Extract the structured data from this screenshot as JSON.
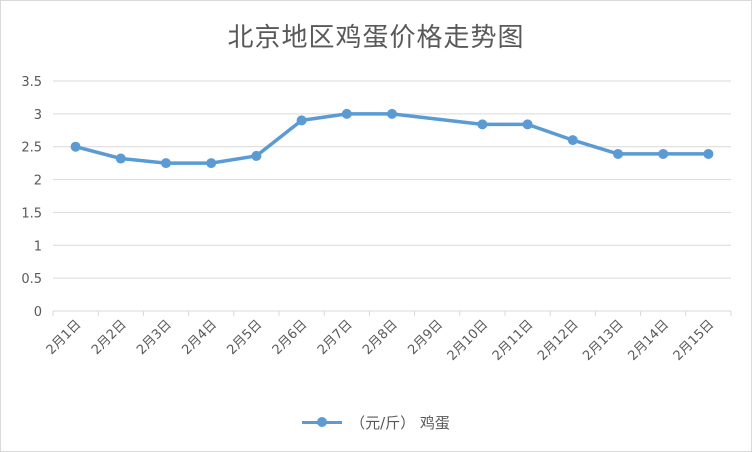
{
  "chart_data": {
    "type": "line",
    "title": "北京地区鸡蛋价格走势图",
    "categories": [
      "2月1日",
      "2月2日",
      "2月3日",
      "2月4日",
      "2月5日",
      "2月6日",
      "2月7日",
      "2月8日",
      "2月9日",
      "2月10日",
      "2月11日",
      "2月12日",
      "2月13日",
      "2月14日",
      "2月15日"
    ],
    "series": [
      {
        "name": "（元/斤） 鸡蛋",
        "x": [
          "2月1日",
          "2月2日",
          "2月3日",
          "2月4日",
          "2月5日",
          "2月6日",
          "2月7日",
          "2月8日",
          "2月10日",
          "2月11日",
          "2月12日",
          "2月13日",
          "2月14日",
          "2月15日"
        ],
        "values": [
          2.5,
          2.32,
          2.25,
          2.25,
          2.36,
          2.9,
          3.0,
          3.0,
          2.84,
          2.84,
          2.6,
          2.39,
          2.39,
          2.39
        ]
      }
    ],
    "ylim": [
      0,
      3.5
    ],
    "yticks": [
      "0",
      "0.5",
      "1",
      "1.5",
      "2",
      "2.5",
      "3",
      "3.5"
    ],
    "grid": true,
    "legend": "bottom",
    "colors": {
      "series": "#5b9bd5",
      "grid": "#d9d9d9",
      "text": "#595959"
    }
  }
}
